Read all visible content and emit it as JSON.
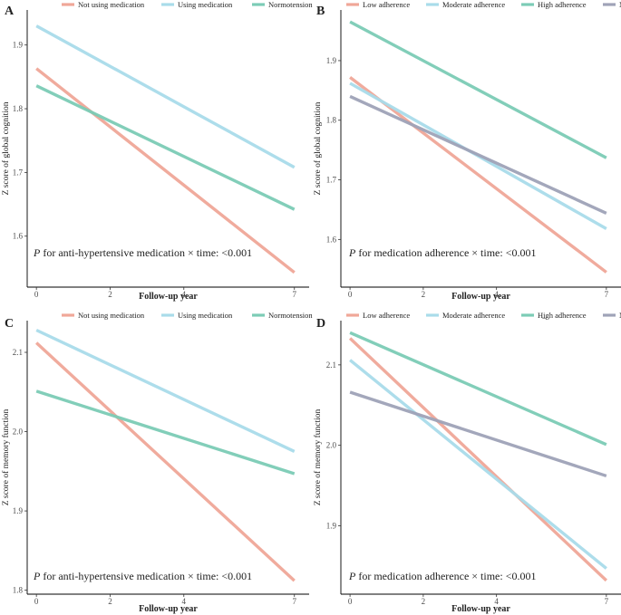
{
  "figure": {
    "panels_order": [
      "A",
      "B",
      "C",
      "D"
    ]
  },
  "chart_data": [
    {
      "type": "line",
      "panel": "A",
      "x": [
        0,
        7
      ],
      "series": [
        {
          "name": "Not using medication",
          "values": [
            1.863,
            1.543
          ],
          "color": "#f0a798"
        },
        {
          "name": "Using medication",
          "values": [
            1.93,
            1.708
          ],
          "color": "#a9dcea"
        },
        {
          "name": "Normotension",
          "values": [
            1.836,
            1.642
          ],
          "color": "#7cccb6"
        }
      ],
      "xlabel": "Follow-up year",
      "ylabel": "Z score of global cognition",
      "xlim": [
        -0.25,
        7.4
      ],
      "ylim": [
        1.52,
        1.955
      ],
      "xticks": [
        0,
        2,
        4,
        7
      ],
      "xtick_labels": [
        "0",
        "2",
        "4",
        "7"
      ],
      "yticks": [
        1.6,
        1.7,
        1.8,
        1.9
      ],
      "ytick_labels": [
        "1.6",
        "1.7",
        "1.8",
        "1.9"
      ],
      "annotation": {
        "italic": "P",
        "rest": " for anti-hypertensive medication × time: <0.001"
      },
      "legend_position": "top"
    },
    {
      "type": "line",
      "panel": "B",
      "x": [
        0,
        7
      ],
      "series": [
        {
          "name": "Low adherence",
          "values": [
            1.872,
            1.545
          ],
          "color": "#f0a798"
        },
        {
          "name": "Moderate adherence",
          "values": [
            1.862,
            1.618
          ],
          "color": "#a9dcea"
        },
        {
          "name": "High adherence",
          "values": [
            1.965,
            1.737
          ],
          "color": "#7cccb6"
        },
        {
          "name": "Normotension",
          "values": [
            1.84,
            1.644
          ],
          "color": "#9fa3b8"
        }
      ],
      "xlabel": "Follow-up year",
      "ylabel": "Z score of global cognition",
      "xlim": [
        -0.25,
        7.4
      ],
      "ylim": [
        1.52,
        1.985
      ],
      "xticks": [
        0,
        2,
        4,
        7
      ],
      "xtick_labels": [
        "0",
        "2",
        "4",
        "7"
      ],
      "yticks": [
        1.6,
        1.7,
        1.8,
        1.9
      ],
      "ytick_labels": [
        "1.6",
        "1.7",
        "1.8",
        "1.9"
      ],
      "annotation": {
        "italic": "P",
        "rest": " for medication adherence × time: <0.001"
      },
      "legend_position": "top"
    },
    {
      "type": "line",
      "panel": "C",
      "x": [
        0,
        7
      ],
      "series": [
        {
          "name": "Not using medication",
          "values": [
            2.112,
            1.812
          ],
          "color": "#f0a798"
        },
        {
          "name": "Using medication",
          "values": [
            2.128,
            1.975
          ],
          "color": "#a9dcea"
        },
        {
          "name": "Normotension",
          "values": [
            2.051,
            1.947
          ],
          "color": "#7cccb6"
        }
      ],
      "xlabel": "Follow-up year",
      "ylabel": "Z score of memory function",
      "xlim": [
        -0.25,
        7.4
      ],
      "ylim": [
        1.795,
        2.14
      ],
      "xticks": [
        0,
        2,
        4,
        7
      ],
      "xtick_labels": [
        "0",
        "2",
        "4",
        "7"
      ],
      "yticks": [
        1.8,
        1.9,
        2.0,
        2.1
      ],
      "ytick_labels": [
        "1.8",
        "1.9",
        "2.0",
        "2.1"
      ],
      "annotation": {
        "italic": "P",
        "rest": " for anti-hypertensive medication × time: <0.001"
      },
      "legend_position": "top"
    },
    {
      "type": "line",
      "panel": "D",
      "x": [
        0,
        7
      ],
      "series": [
        {
          "name": "Low adherence",
          "values": [
            2.133,
            1.832
          ],
          "color": "#f0a798"
        },
        {
          "name": "Moderate adherence",
          "values": [
            2.106,
            1.847
          ],
          "color": "#a9dcea"
        },
        {
          "name": "Hi̲gh adherence",
          "values": [
            2.14,
            2.001
          ],
          "color": "#7cccb6"
        },
        {
          "name": "Normotension",
          "values": [
            2.066,
            1.962
          ],
          "color": "#9fa3b8"
        }
      ],
      "xlabel": "Follow-up year",
      "ylabel": "Z score of memory function",
      "xlim": [
        -0.25,
        7.4
      ],
      "ylim": [
        1.815,
        2.155
      ],
      "xticks": [
        0,
        2,
        4,
        7
      ],
      "xtick_labels": [
        "0",
        "2",
        "4",
        "7"
      ],
      "yticks": [
        1.9,
        2.0,
        2.1
      ],
      "ytick_labels": [
        "1.9",
        "2.0",
        "2.1"
      ],
      "annotation": {
        "italic": "P",
        "rest": " for medication adherence × time: <0.001"
      },
      "legend_position": "top"
    }
  ]
}
